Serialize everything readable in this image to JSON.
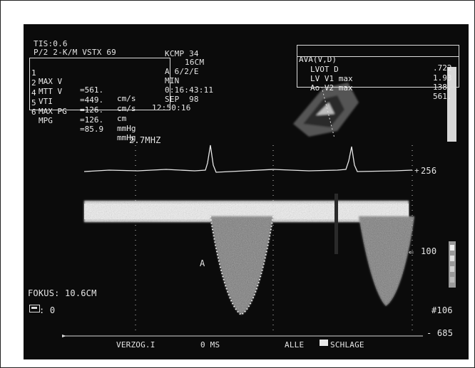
{
  "header_left": {
    "tis": "TIS:0.6",
    "mode_line": "P/2 2-K/M VSTX 69",
    "kcmp": "KCMP 34",
    "depth": "16CM",
    "gain": "A 6/2/E",
    "min": "MIN",
    "time": "0:16:43:11",
    "date": "SEP  98",
    "clock": "12:50:16"
  },
  "measurements": [
    {
      "marker": "1",
      "label": "MAX V",
      "value": "=561.",
      "unit": "cm/s"
    },
    {
      "marker": "2",
      "label": "MTT V",
      "value": "=449.",
      "unit": "cm/s"
    },
    {
      "marker": "4",
      "label": "VTI",
      "value": "=126.",
      "unit": "cm"
    },
    {
      "marker": "5",
      "label": "MAX PG",
      "value": "=126.",
      "unit": "mmHg"
    },
    {
      "marker": "6",
      "label": "MPG",
      "value": "=85.9",
      "unit": "mmHg"
    }
  ],
  "ava_box": {
    "rows": [
      {
        "label": "AVA(V,D)",
        "value": ".722"
      },
      {
        "label": "LVOT D",
        "value": "1.93"
      },
      {
        "label": "LV V1 max",
        "value": "138."
      },
      {
        "label": "Ao V2 max",
        "value": "561."
      }
    ]
  },
  "frequency": "2.7MHZ",
  "scale": {
    "top": "256",
    "mid_arrow": "⇐",
    "mid": "100",
    "right_bottom": "#106",
    "bottom": "- 685"
  },
  "marker_a": "A",
  "fokus": "FOKUS: 10.6CM",
  "icon_value": ": 0",
  "bottom_bar": {
    "left": "VERZOG.I",
    "mid": "0 MS",
    "right_a": "ALLE",
    "right_b": "SCHLAGE"
  }
}
